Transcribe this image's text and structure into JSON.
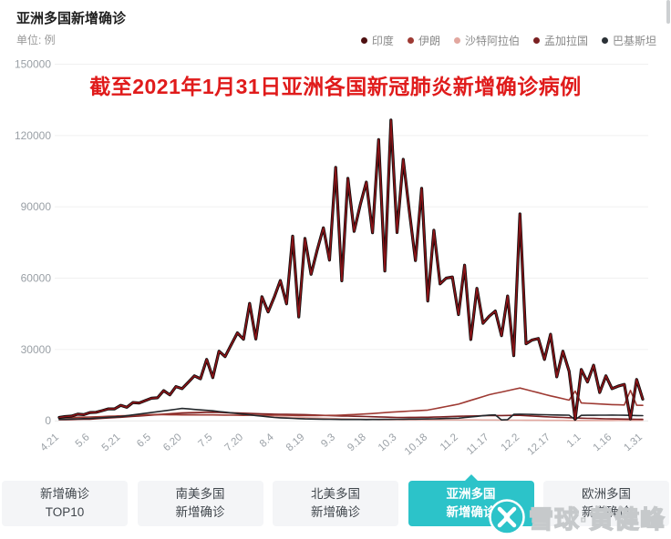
{
  "header": {
    "title": "亚洲多国新增确诊",
    "unit_label": "单位: 例"
  },
  "legend": [
    {
      "label": "印度",
      "color": "#4e1011"
    },
    {
      "label": "伊朗",
      "color": "#9e3a33"
    },
    {
      "label": "沙特阿拉伯",
      "color": "#e2a79f"
    },
    {
      "label": "孟加拉国",
      "color": "#7a2021"
    },
    {
      "label": "巴基斯坦",
      "color": "#2b3136"
    }
  ],
  "tabs": [
    {
      "line1": "新增确诊",
      "line2": "TOP10",
      "active": false
    },
    {
      "line1": "南美多国",
      "line2": "新增确诊",
      "active": false
    },
    {
      "line1": "北美多国",
      "line2": "新增确诊",
      "active": false
    },
    {
      "line1": "亚洲多国",
      "line2": "新增确诊",
      "active": true
    },
    {
      "line1": "欧洲多国",
      "line2": "新增确诊",
      "active": false
    }
  ],
  "watermark": {
    "text": "雪球·黄健峰",
    "logo_color": "#2cc3c9"
  },
  "chart_data": {
    "type": "line",
    "title": "截至2021年1月31日亚洲各国新冠肺炎新增确诊病例",
    "ylabel": "例",
    "ylim": [
      0,
      150000
    ],
    "y_ticks": [
      0,
      30000,
      60000,
      90000,
      120000,
      150000
    ],
    "grid": true,
    "legend_position": "top-right",
    "x_tick_labels": [
      "4.21",
      "5.6",
      "5.21",
      "6.5",
      "6.20",
      "7.5",
      "7.20",
      "8.4",
      "8.19",
      "9.3",
      "9.18",
      "10.3",
      "10.18",
      "11.2",
      "11.17",
      "12.2",
      "12.17",
      "1.1",
      "1.16",
      "1.31"
    ],
    "x_tick_interval_days": 15,
    "sample_step_days": 3,
    "days_total": 285,
    "series": [
      {
        "name": "印度",
        "color": "#8c1418",
        "outline": "#0a0a0a",
        "values": [
          1400,
          1800,
          2000,
          2800,
          2600,
          3500,
          3600,
          4300,
          5000,
          5000,
          6500,
          5700,
          7700,
          7500,
          8500,
          9500,
          9700,
          12700,
          10900,
          14400,
          13500,
          16200,
          18900,
          17700,
          25800,
          18200,
          29300,
          27000,
          32000,
          37000,
          34300,
          49400,
          34400,
          52200,
          45800,
          52000,
          59000,
          49200,
          77700,
          43700,
          76700,
          61600,
          71800,
          81200,
          67600,
          106600,
          58900,
          102000,
          79700,
          90800,
          100400,
          79100,
          118300,
          63000,
          126500,
          79200,
          110000,
          88100,
          67400,
          97800,
          50400,
          80200,
          57600,
          60000,
          60500,
          44700,
          65500,
          34200,
          55700,
          41000,
          44000,
          46200,
          35800,
          52500,
          27400,
          87000,
          32400,
          34000,
          34600,
          25800,
          36400,
          18500,
          29300,
          20900,
          600,
          21600,
          16300,
          23400,
          11900,
          18900,
          13500,
          14600,
          15300,
          800,
          17400,
          9100
        ]
      },
      {
        "name": "伊朗",
        "color": "#9e3a33",
        "values": [
          1300,
          1360,
          1420,
          1480,
          1540,
          1600,
          1700,
          1800,
          1900,
          2000,
          2100,
          2200,
          2300,
          2400,
          2500,
          2600,
          2580,
          2560,
          2540,
          2520,
          2500,
          2500,
          2500,
          2500,
          2500,
          2500,
          2460,
          2420,
          2380,
          2340,
          2300,
          2320,
          2340,
          2360,
          2380,
          2400,
          2360,
          2320,
          2280,
          2240,
          2200,
          2220,
          2240,
          2260,
          2280,
          2300,
          2420,
          2540,
          2660,
          2780,
          2900,
          3080,
          3260,
          3440,
          3620,
          3800,
          3940,
          4080,
          4220,
          4360,
          4500,
          5000,
          5500,
          6000,
          6500,
          7000,
          7800,
          8600,
          9400,
          10200,
          11000,
          11560,
          12120,
          12680,
          13240,
          13800,
          13140,
          12480,
          11820,
          11160,
          10500,
          9900,
          9300,
          8700,
          12500,
          7500,
          7360,
          7220,
          7080,
          6940,
          6800,
          6740,
          6680,
          12800,
          6560,
          6500
        ]
      },
      {
        "name": "沙特阿拉伯",
        "color": "#e2a79f",
        "values": [
          1200,
          1260,
          1320,
          1380,
          1440,
          1500,
          1580,
          1660,
          1740,
          1820,
          1900,
          2040,
          2180,
          2320,
          2460,
          2600,
          2780,
          2960,
          3140,
          3320,
          3500,
          3560,
          3620,
          3680,
          3740,
          3800,
          3580,
          3360,
          3140,
          2920,
          2700,
          2520,
          2340,
          2160,
          1980,
          1800,
          1700,
          1600,
          1500,
          1400,
          1300,
          1220,
          1140,
          1060,
          980,
          900,
          840,
          780,
          720,
          660,
          600,
          570,
          540,
          510,
          480,
          450,
          440,
          430,
          420,
          410,
          400,
          400,
          400,
          400,
          400,
          400,
          390,
          380,
          370,
          360,
          350,
          330,
          310,
          290,
          270,
          250,
          240,
          230,
          220,
          210,
          200,
          190,
          180,
          170,
          160,
          150,
          154,
          158,
          162,
          166,
          170,
          180,
          190,
          200,
          210,
          220
        ]
      },
      {
        "name": "孟加拉国",
        "color": "#7a2021",
        "values": [
          450,
          500,
          550,
          600,
          650,
          700,
          860,
          1020,
          1180,
          1340,
          1500,
          1680,
          1860,
          2040,
          2220,
          2400,
          2560,
          2720,
          2880,
          3040,
          3200,
          3280,
          3360,
          3440,
          3520,
          3600,
          3520,
          3440,
          3360,
          3280,
          3200,
          3120,
          3040,
          2960,
          2880,
          2800,
          2760,
          2720,
          2680,
          2640,
          2600,
          2500,
          2400,
          2300,
          2200,
          2100,
          2040,
          1980,
          1920,
          1860,
          1800,
          1720,
          1640,
          1560,
          1480,
          1400,
          1420,
          1440,
          1460,
          1480,
          1500,
          1580,
          1660,
          1740,
          1820,
          1900,
          1960,
          2020,
          2080,
          2140,
          2200,
          2220,
          2240,
          2260,
          2280,
          2300,
          2160,
          2020,
          1880,
          1740,
          1600,
          1500,
          1400,
          1300,
          1200,
          1100,
          1040,
          980,
          920,
          860,
          800,
          760,
          720,
          680,
          640,
          600
        ]
      },
      {
        "name": "巴基斯坦",
        "color": "#23272b",
        "values": [
          600,
          680,
          760,
          840,
          920,
          1000,
          1160,
          1320,
          1480,
          1640,
          1800,
          2140,
          2480,
          2820,
          3160,
          3500,
          3840,
          4180,
          4520,
          4860,
          5200,
          5000,
          4800,
          4600,
          4400,
          4200,
          3920,
          3640,
          3360,
          3080,
          2800,
          2520,
          2240,
          1960,
          1680,
          1400,
          1280,
          1160,
          1040,
          920,
          800,
          760,
          720,
          680,
          640,
          600,
          590,
          580,
          570,
          560,
          550,
          570,
          590,
          610,
          630,
          650,
          680,
          710,
          740,
          770,
          800,
          860,
          920,
          980,
          1040,
          1100,
          1360,
          1620,
          1880,
          2140,
          2400,
          2480,
          400,
          500,
          2700,
          2800,
          2740,
          2680,
          2620,
          2560,
          2500,
          2460,
          2420,
          2380,
          500,
          2300,
          2320,
          2340,
          2360,
          2380,
          2400,
          2360,
          2320,
          2280,
          2240,
          2200
        ]
      }
    ]
  }
}
